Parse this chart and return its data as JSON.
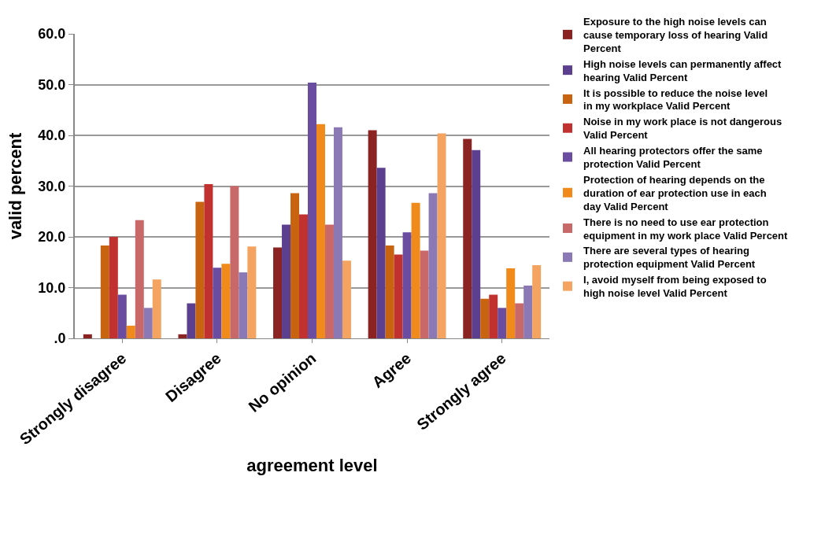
{
  "chart_data": {
    "type": "bar",
    "xlabel": "agreement level",
    "ylabel": "valid percent",
    "categories": [
      "Strongly disagree",
      "Disagree",
      "No opinion",
      "Agree",
      "Strongly agree"
    ],
    "series": [
      {
        "name": "Exposure to the high noise levels can cause temporary loss of hearing Valid Percent",
        "color": "#8b2323",
        "values": [
          0.8,
          0.8,
          17.9,
          41.0,
          39.3
        ]
      },
      {
        "name": "High noise levels can permanently affect hearing Valid Percent",
        "color": "#5c3f8f",
        "values": [
          null,
          6.9,
          22.4,
          33.6,
          37.1
        ]
      },
      {
        "name": "It is possible to reduce the noise level in my workplace Valid Percent",
        "color": "#c8640f",
        "values": [
          18.3,
          26.9,
          28.6,
          18.3,
          7.8
        ]
      },
      {
        "name": "Noise in my work place is not dangerous Valid Percent",
        "color": "#c0312f",
        "values": [
          20.0,
          30.4,
          24.4,
          16.5,
          8.6
        ]
      },
      {
        "name": "All hearing protectors offer the same protection Valid Percent",
        "color": "#6a4ca0",
        "values": [
          8.6,
          13.9,
          50.4,
          20.9,
          6.0
        ]
      },
      {
        "name": "Protection of hearing depends on the duration of ear protection use in each day Valid Percent",
        "color": "#f08a1a",
        "values": [
          2.5,
          14.7,
          42.2,
          26.7,
          13.8
        ]
      },
      {
        "name": "There is no need to use ear protection equipment in my work place Valid Percent",
        "color": "#c86868",
        "values": [
          23.3,
          30.0,
          22.4,
          17.3,
          6.9
        ]
      },
      {
        "name": "There are several types of hearing protection equipment Valid Percent",
        "color": "#8b79b5",
        "values": [
          6.0,
          13.0,
          41.6,
          28.6,
          10.4
        ]
      },
      {
        "name": "I, avoid myself from being exposed to high noise level Valid Percent",
        "color": "#f4a460",
        "values": [
          11.6,
          18.1,
          15.3,
          40.4,
          14.4
        ]
      }
    ],
    "ylim": [
      0,
      60
    ],
    "yticks": [
      {
        "value": 0,
        "label": ".0"
      },
      {
        "value": 10,
        "label": "10.0"
      },
      {
        "value": 20,
        "label": "20.0"
      },
      {
        "value": 30,
        "label": "30.0"
      },
      {
        "value": 40,
        "label": "40.0"
      },
      {
        "value": 50,
        "label": "50.0"
      },
      {
        "value": 60,
        "label": "60.0"
      }
    ],
    "grid": "y",
    "legend": "right"
  }
}
